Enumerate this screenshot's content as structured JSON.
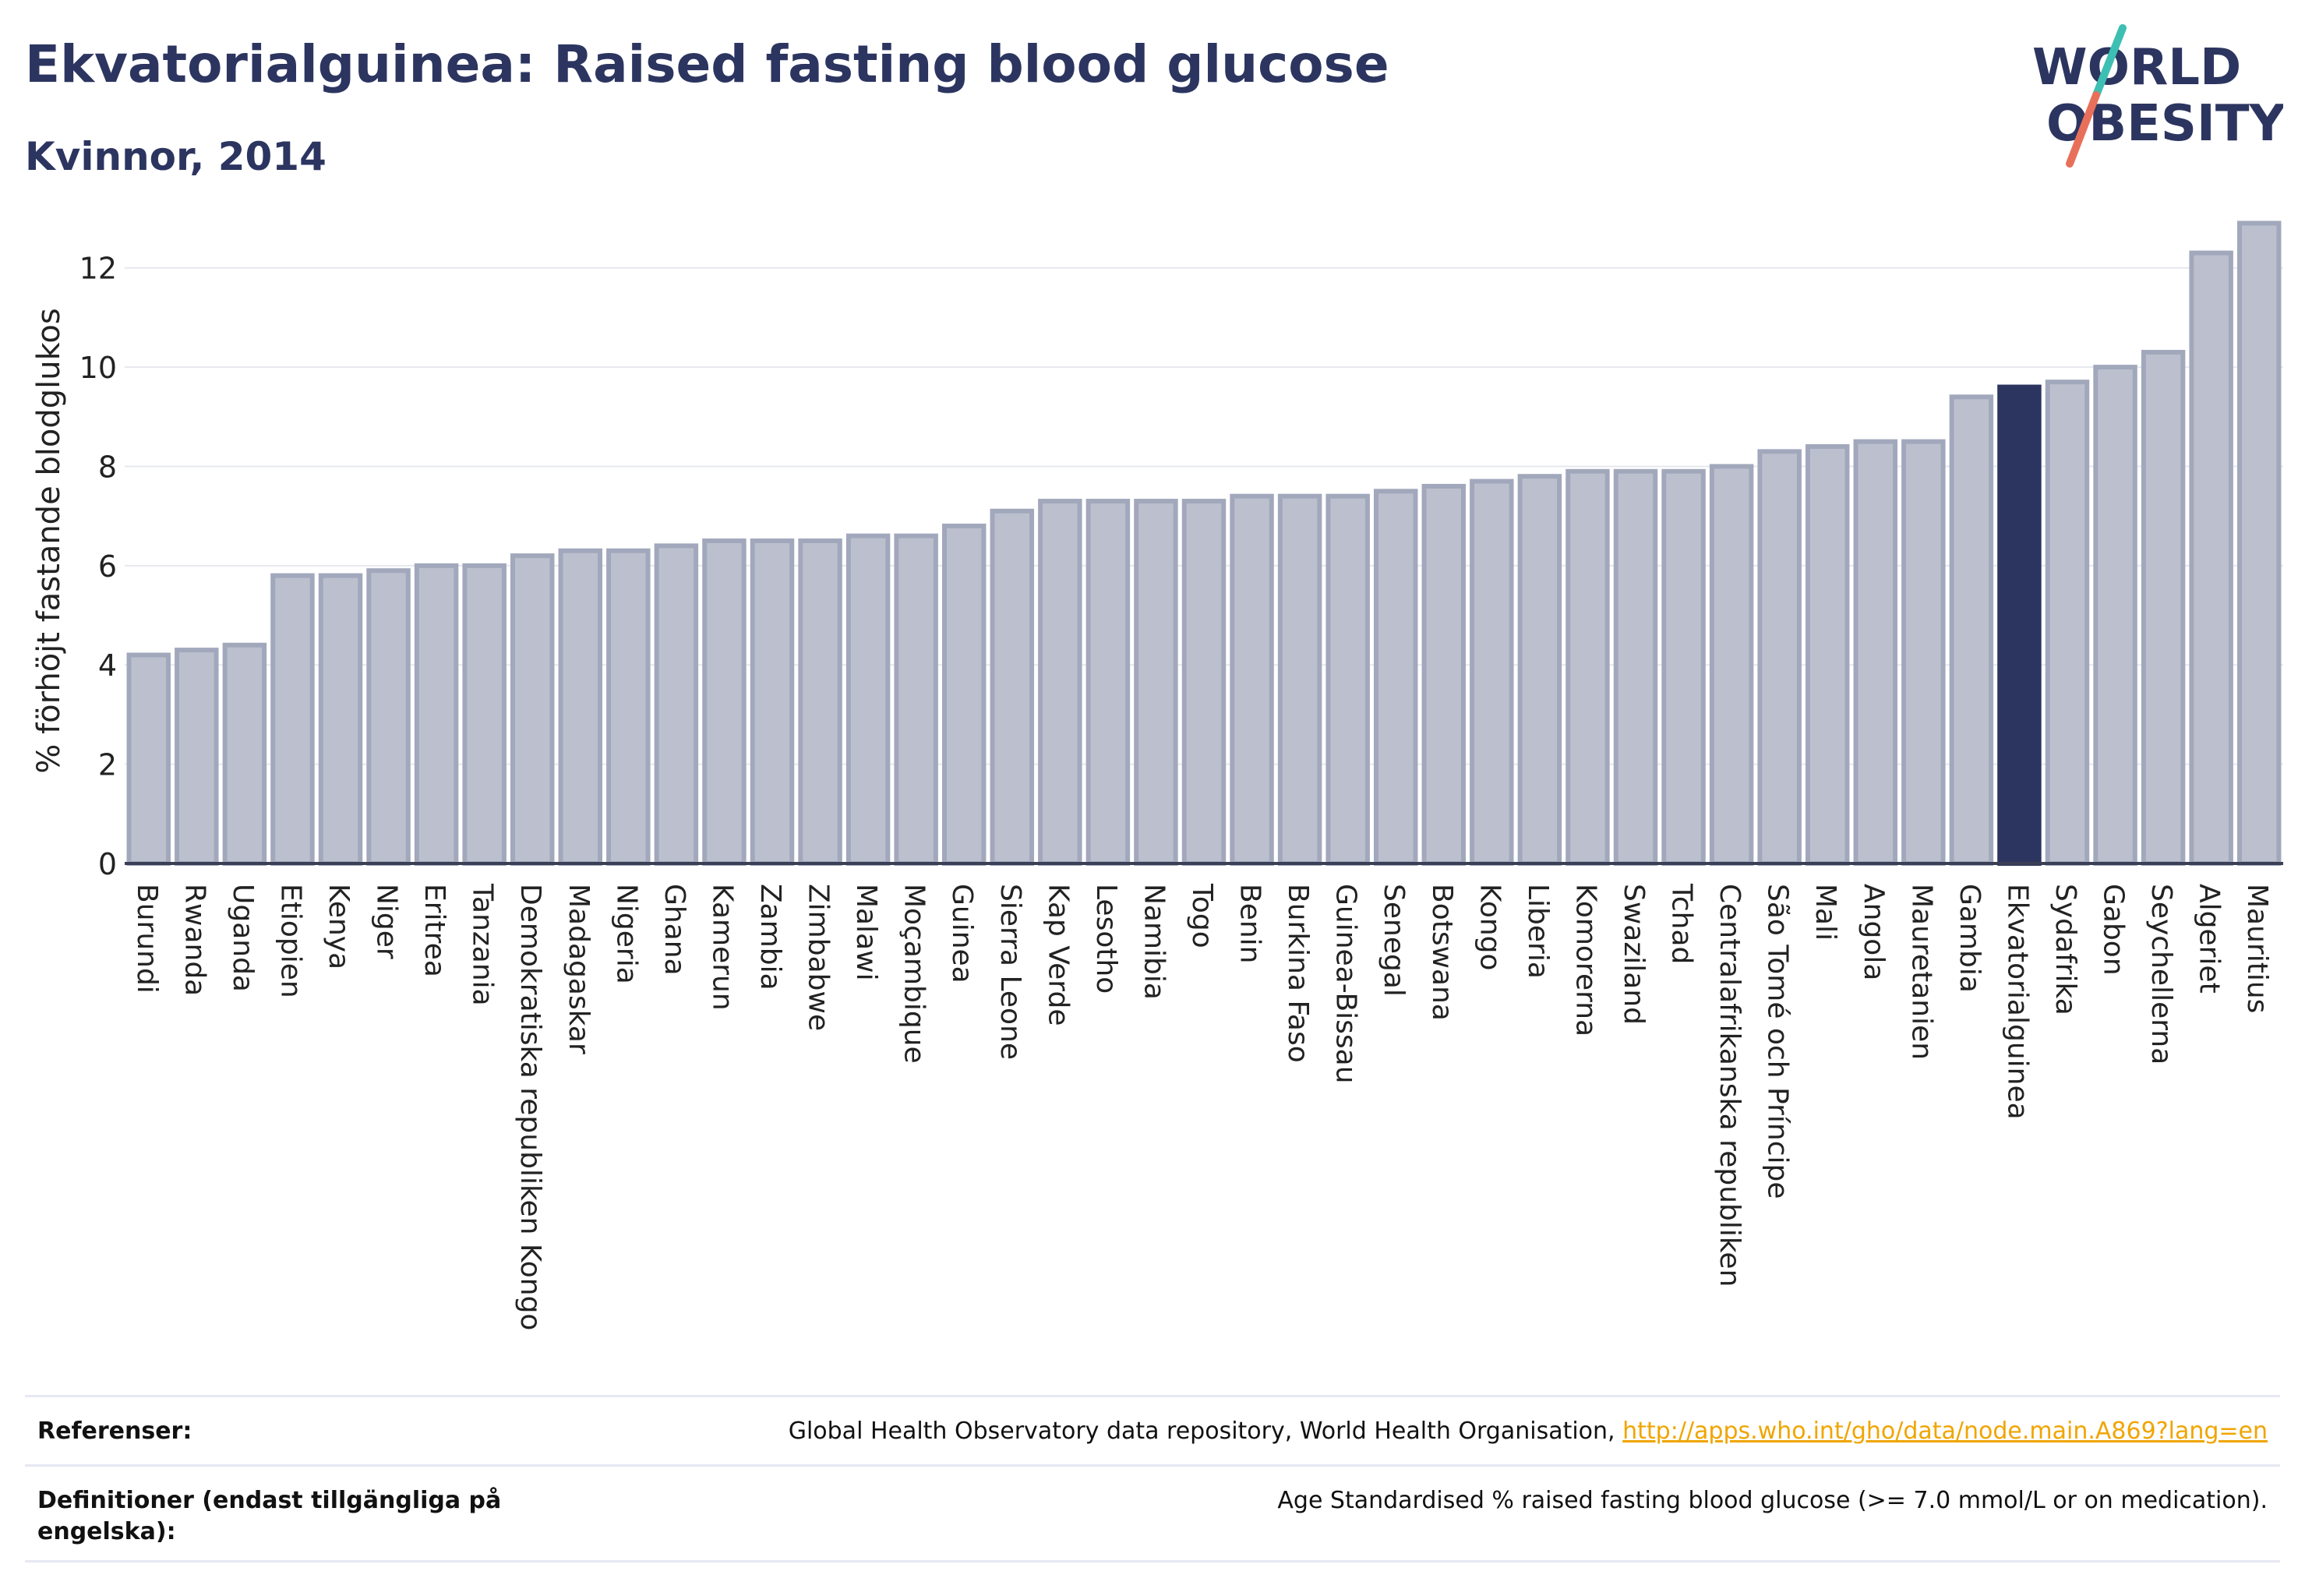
{
  "header": {
    "title": "Ekvatorialguinea: Raised fasting blood glucose",
    "subtitle": "Kvinnor, 2014"
  },
  "logo": {
    "line1": "WORLD",
    "line2": "OBESITY"
  },
  "colors": {
    "bar_fill": "#bcc0ce",
    "bar_stroke": "#a2a8bc",
    "highlight": "#2c3560",
    "grid": "#e6e8ee",
    "logo_text": "#2c3560",
    "logo_teal": "#3ebfb3",
    "logo_coral": "#e8705a"
  },
  "chart_data": {
    "type": "bar",
    "title": "Ekvatorialguinea: Raised fasting blood glucose",
    "subtitle": "Kvinnor, 2014",
    "ylabel": "% förhöjt fastande blodglukos",
    "xlabel": "",
    "ylim": [
      0,
      13
    ],
    "yticks": [
      0,
      2,
      4,
      6,
      8,
      10,
      12
    ],
    "grid": true,
    "highlight": "Ekvatorialguinea",
    "categories": [
      "Burundi",
      "Rwanda",
      "Uganda",
      "Etiopien",
      "Kenya",
      "Niger",
      "Eritrea",
      "Tanzania",
      "Demokratiska republiken Kongo",
      "Madagaskar",
      "Nigeria",
      "Ghana",
      "Kamerun",
      "Zambia",
      "Zimbabwe",
      "Malawi",
      "Moçambique",
      "Guinea",
      "Sierra Leone",
      "Kap Verde",
      "Lesotho",
      "Namibia",
      "Togo",
      "Benin",
      "Burkina Faso",
      "Guinea-Bissau",
      "Senegal",
      "Botswana",
      "Kongo",
      "Liberia",
      "Komorerna",
      "Swaziland",
      "Tchad",
      "Centralafrikanska republiken",
      "São Tomé och Príncipe",
      "Mali",
      "Angola",
      "Mauretanien",
      "Gambia",
      "Ekvatorialguinea",
      "Sydafrika",
      "Gabon",
      "Seychellerna",
      "Algeriet",
      "Mauritius"
    ],
    "values": [
      4.2,
      4.3,
      4.4,
      5.8,
      5.8,
      5.9,
      6.0,
      6.0,
      6.2,
      6.3,
      6.3,
      6.4,
      6.5,
      6.5,
      6.5,
      6.6,
      6.6,
      6.8,
      7.1,
      7.3,
      7.3,
      7.3,
      7.3,
      7.4,
      7.4,
      7.4,
      7.5,
      7.6,
      7.7,
      7.8,
      7.9,
      7.9,
      7.9,
      8.0,
      8.3,
      8.4,
      8.5,
      8.5,
      9.4,
      9.6,
      9.7,
      10.0,
      10.3,
      12.3,
      12.9
    ]
  },
  "footer": {
    "references_label": "Referenser:",
    "references_text": "Global Health Observatory data repository, World Health Organisation,",
    "references_link": "http://apps.who.int/gho/data/node.main.A869?lang=en",
    "definitions_label": "Definitioner (endast tillgängliga på engelska):",
    "definitions_text": "Age Standardised % raised fasting blood glucose (>= 7.0 mmol/L or on medication)."
  }
}
